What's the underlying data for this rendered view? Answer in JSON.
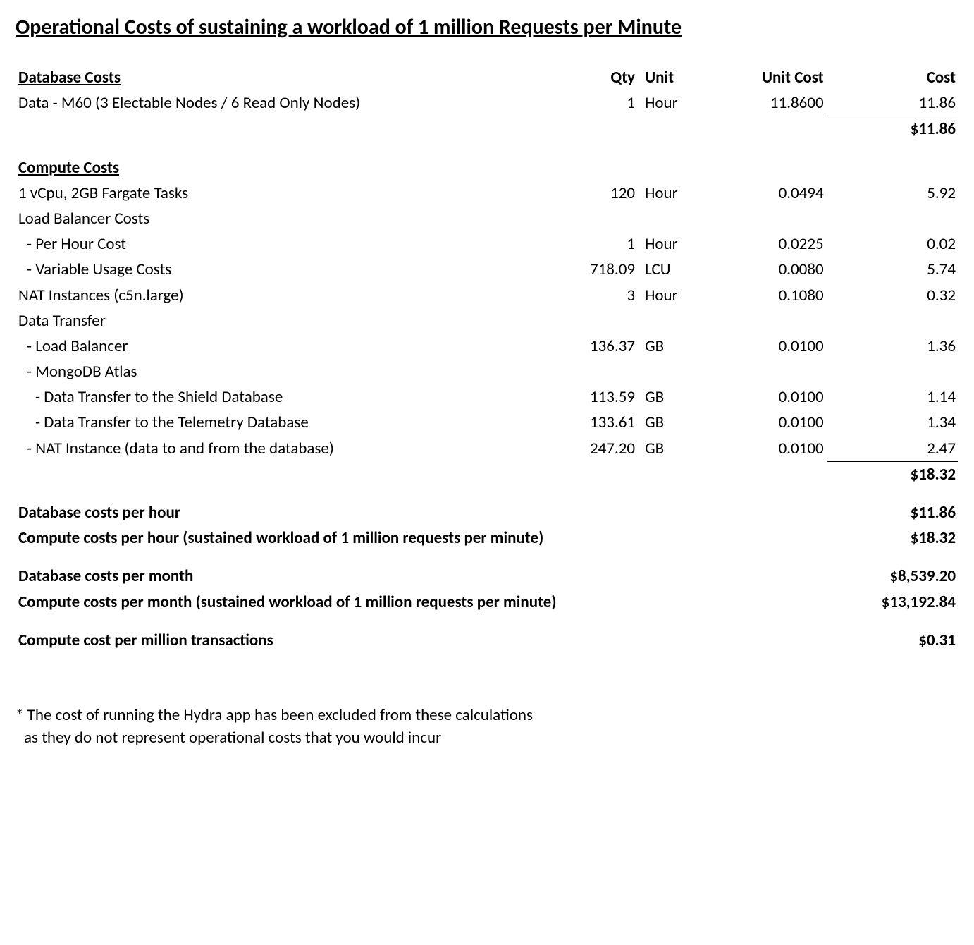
{
  "title": "Operational Costs of sustaining a workload of 1 million Requests per Minute",
  "columns": {
    "desc": "Database Costs",
    "qty": "Qty",
    "unit": "Unit",
    "unit_cost": "Unit Cost",
    "cost": "Cost"
  },
  "database": {
    "header": "Database Costs",
    "rows": [
      {
        "desc": "Data - M60 (3 Electable Nodes / 6 Read Only Nodes)",
        "qty": "1",
        "unit": "Hour",
        "unit_cost": "11.8600",
        "cost": "11.86"
      }
    ],
    "subtotal": "$11.86"
  },
  "compute": {
    "header": "Compute Costs",
    "rows": [
      {
        "desc": "1 vCpu, 2GB Fargate Tasks",
        "qty": "120",
        "unit": "Hour",
        "unit_cost": "0.0494",
        "cost": "5.92",
        "indent": 0
      },
      {
        "desc": "Load Balancer Costs",
        "qty": "",
        "unit": "",
        "unit_cost": "",
        "cost": "",
        "indent": 0,
        "label_only": true
      },
      {
        "desc": "- Per Hour Cost",
        "qty": "1",
        "unit": "Hour",
        "unit_cost": "0.0225",
        "cost": "0.02",
        "indent": 1
      },
      {
        "desc": "- Variable Usage Costs",
        "qty": "718.09",
        "unit": "LCU",
        "unit_cost": "0.0080",
        "cost": "5.74",
        "indent": 1
      },
      {
        "desc": "NAT Instances (c5n.large)",
        "qty": "3",
        "unit": "Hour",
        "unit_cost": "0.1080",
        "cost": "0.32",
        "indent": 0
      },
      {
        "desc": "Data Transfer",
        "qty": "",
        "unit": "",
        "unit_cost": "",
        "cost": "",
        "indent": 0,
        "label_only": true
      },
      {
        "desc": "- Load Balancer",
        "qty": "136.37",
        "unit": "GB",
        "unit_cost": "0.0100",
        "cost": "1.36",
        "indent": 1
      },
      {
        "desc": "- MongoDB Atlas",
        "qty": "",
        "unit": "",
        "unit_cost": "",
        "cost": "",
        "indent": 1,
        "label_only": true
      },
      {
        "desc": "- Data Transfer to the Shield Database",
        "qty": "113.59",
        "unit": "GB",
        "unit_cost": "0.0100",
        "cost": "1.14",
        "indent": 2
      },
      {
        "desc": "- Data Transfer to the Telemetry Database",
        "qty": "133.61",
        "unit": "GB",
        "unit_cost": "0.0100",
        "cost": "1.34",
        "indent": 2
      },
      {
        "desc": "- NAT Instance (data to and from the database)",
        "qty": "247.20",
        "unit": "GB",
        "unit_cost": "0.0100",
        "cost": "2.47",
        "indent": 1
      }
    ],
    "subtotal": "$18.32"
  },
  "summary": {
    "rows": [
      {
        "label": "Database costs per hour",
        "value": "$11.86"
      },
      {
        "label": "Compute costs per hour (sustained workload of 1 million requests per minute)",
        "value": "$18.32"
      }
    ],
    "rows2": [
      {
        "label": "Database costs per month",
        "value": "$8,539.20"
      },
      {
        "label": "Compute costs per month (sustained workload of 1 million requests per minute)",
        "value": "$13,192.84"
      }
    ],
    "rows3": [
      {
        "label": "Compute cost per million transactions",
        "value": "$0.31"
      }
    ]
  },
  "footnote": {
    "line1": "* The cost of running the Hydra app has been excluded from these calculations",
    "line2": "as they do not represent operational costs that you would incur"
  },
  "colors": {
    "text": "#000000",
    "background": "#ffffff",
    "rule": "#000000"
  },
  "typography": {
    "body_fontsize": 23,
    "title_fontsize": 30,
    "font_family": "Calibri"
  }
}
